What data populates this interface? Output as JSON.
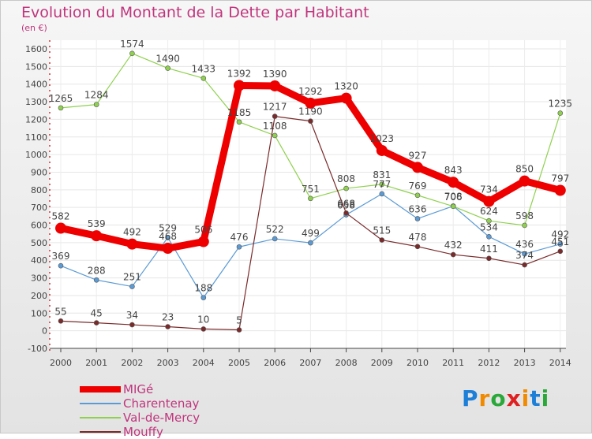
{
  "title": "Evolution du Montant de la Dette par Habitant",
  "subtitle": "(en €)",
  "logo_text": "Proxiti",
  "chart_data": {
    "type": "line",
    "title": "Evolution du Montant de la Dette par Habitant",
    "subtitle": "(en €)",
    "xlabel": "",
    "ylabel": "",
    "x": [
      "2000",
      "2001",
      "2002",
      "2003",
      "2004",
      "2005",
      "2006",
      "2007",
      "2008",
      "2009",
      "2010",
      "2011",
      "2012",
      "2013",
      "2014"
    ],
    "ylim": [
      -100,
      1600
    ],
    "yticks": [
      -100,
      0,
      100,
      200,
      300,
      400,
      500,
      600,
      700,
      800,
      900,
      1000,
      1100,
      1200,
      1300,
      1400,
      1500,
      1600
    ],
    "grid": true,
    "legend_position": "bottom-left",
    "series": [
      {
        "name": "MIGé",
        "color": "#ee0000",
        "values": [
          582,
          539,
          492,
          468,
          506,
          1392,
          1390,
          1292,
          1320,
          1023,
          927,
          843,
          734,
          850,
          797
        ]
      },
      {
        "name": "Charentenay",
        "color": "#5b9bd5",
        "values": [
          369,
          288,
          251,
          529,
          188,
          476,
          522,
          499,
          658,
          777,
          636,
          708,
          534,
          436,
          492
        ]
      },
      {
        "name": "Val-de-Mercy",
        "color": "#8fd14f",
        "values": [
          1265,
          1284,
          1574,
          1490,
          1433,
          1185,
          1108,
          751,
          808,
          831,
          769,
          706,
          624,
          598,
          1235
        ]
      },
      {
        "name": "Mouffy",
        "color": "#7a2a2a",
        "values": [
          55,
          45,
          34,
          23,
          10,
          5,
          1217,
          1190,
          668,
          515,
          478,
          432,
          411,
          374,
          451
        ]
      }
    ]
  }
}
